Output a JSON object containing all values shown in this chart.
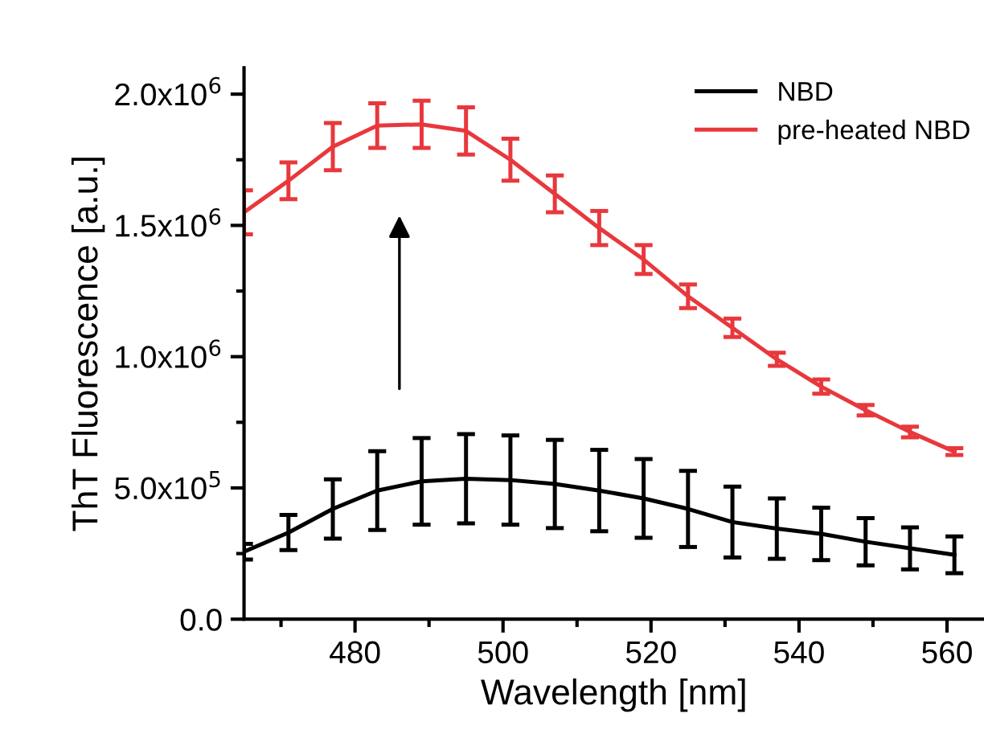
{
  "chart_data": {
    "type": "line",
    "xlabel": "Wavelength [nm]",
    "ylabel": "ThT Fluorescence [a.u.]",
    "x": [
      465,
      471,
      477,
      483,
      489,
      495,
      501,
      507,
      513,
      519,
      525,
      531,
      537,
      543,
      549,
      555,
      561
    ],
    "series": [
      {
        "name": "NBD",
        "color": "#000000",
        "values": [
          257000,
          330000,
          420000,
          490000,
          525000,
          535000,
          530000,
          515000,
          490000,
          460000,
          420000,
          370000,
          345000,
          325000,
          295000,
          270000,
          245000
        ],
        "errors": [
          30000,
          67000,
          113000,
          150000,
          165000,
          170000,
          170000,
          168000,
          155000,
          150000,
          145000,
          135000,
          115000,
          100000,
          90000,
          80000,
          70000
        ]
      },
      {
        "name": "pre-heated NBD",
        "color": "#e8383d",
        "values": [
          1550000,
          1670000,
          1800000,
          1880000,
          1885000,
          1860000,
          1750000,
          1620000,
          1490000,
          1370000,
          1230000,
          1110000,
          990000,
          886000,
          796000,
          713000,
          638000
        ],
        "errors": [
          84000,
          70000,
          90000,
          85000,
          90000,
          90000,
          80000,
          70000,
          65000,
          55000,
          45000,
          35000,
          25000,
          27000,
          20000,
          20000,
          13000
        ]
      }
    ],
    "xlim": [
      465,
      565
    ],
    "xticks": [
      {
        "value": 470,
        "label": null
      },
      480,
      {
        "value": 490,
        "label": null
      },
      500,
      {
        "value": 510,
        "label": null
      },
      520,
      {
        "value": 530,
        "label": null
      },
      540,
      {
        "value": 550,
        "label": null
      },
      560
    ],
    "ylim": [
      0,
      2100000
    ],
    "yticks": [
      {
        "value": 0,
        "label": "0.0"
      },
      {
        "value": 250000,
        "label": null
      },
      {
        "value": 500000,
        "label": "5.0x10$^{5}$"
      },
      {
        "value": 750000,
        "label": null
      },
      {
        "value": 1000000,
        "label": "1.0x10$^{6}$"
      },
      {
        "value": 1250000,
        "label": null
      },
      {
        "value": 1500000,
        "label": "1.5x10$^{6}$"
      },
      {
        "value": 1750000,
        "label": null
      },
      {
        "value": 2000000,
        "label": "2.0x10$^{6}$"
      }
    ],
    "legend": "top right",
    "grid": false,
    "marker": "none",
    "line_style": "solid"
  }
}
